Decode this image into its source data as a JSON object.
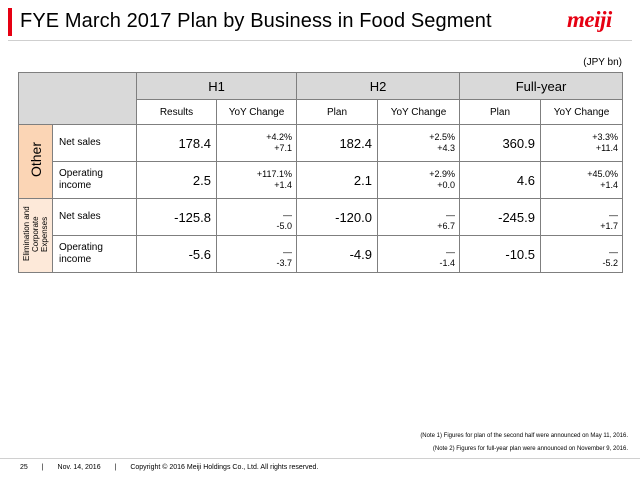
{
  "header": {
    "title": "FYE March 2017 Plan by Business in Food Segment",
    "logo_text": "meiji",
    "accent_color": "#e60012"
  },
  "unit_note": "(JPY bn)",
  "table": {
    "periods": [
      "H1",
      "H2",
      "Full-year"
    ],
    "subheaders": [
      "Results",
      "YoY Change",
      "Plan",
      "YoY Change",
      "Plan",
      "YoY Change"
    ],
    "segments": [
      {
        "name": "Other",
        "rows": [
          {
            "label": "Net sales",
            "cells": [
              {
                "value": "178.4",
                "change": [
                  "+4.2%",
                  "+7.1"
                ]
              },
              {
                "value": "182.4",
                "change": [
                  "+2.5%",
                  "+4.3"
                ]
              },
              {
                "value": "360.9",
                "change": [
                  "+3.3%",
                  "+11.4"
                ]
              }
            ]
          },
          {
            "label": "Operating income",
            "cells": [
              {
                "value": "2.5",
                "change": [
                  "+117.1%",
                  "+1.4"
                ]
              },
              {
                "value": "2.1",
                "change": [
                  "+2.9%",
                  "+0.0"
                ]
              },
              {
                "value": "4.6",
                "change": [
                  "+45.0%",
                  "+1.4"
                ]
              }
            ]
          }
        ]
      },
      {
        "name": "Elimination and Corporate Expenses",
        "rows": [
          {
            "label": "Net sales",
            "cells": [
              {
                "value": "-125.8",
                "change": [
                  "—",
                  "-5.0"
                ]
              },
              {
                "value": "-120.0",
                "change": [
                  "—",
                  "+6.7"
                ]
              },
              {
                "value": "-245.9",
                "change": [
                  "—",
                  "+1.7"
                ]
              }
            ]
          },
          {
            "label": "Operating income",
            "cells": [
              {
                "value": "-5.6",
                "change": [
                  "—",
                  "-3.7"
                ]
              },
              {
                "value": "-4.9",
                "change": [
                  "—",
                  "-1.4"
                ]
              },
              {
                "value": "-10.5",
                "change": [
                  "—",
                  "-5.2"
                ]
              }
            ]
          }
        ]
      }
    ]
  },
  "notes": [
    "(Note 1) Figures for plan of the second half  were announced on May 11, 2016.",
    "(Note 2) Figures for full-year plan were announced on November 9, 2016."
  ],
  "footer": {
    "page_number": "25",
    "date": "Nov. 14, 2016",
    "copyright": "Copyright © 2016 Meiji Holdings Co., Ltd. All rights reserved."
  }
}
